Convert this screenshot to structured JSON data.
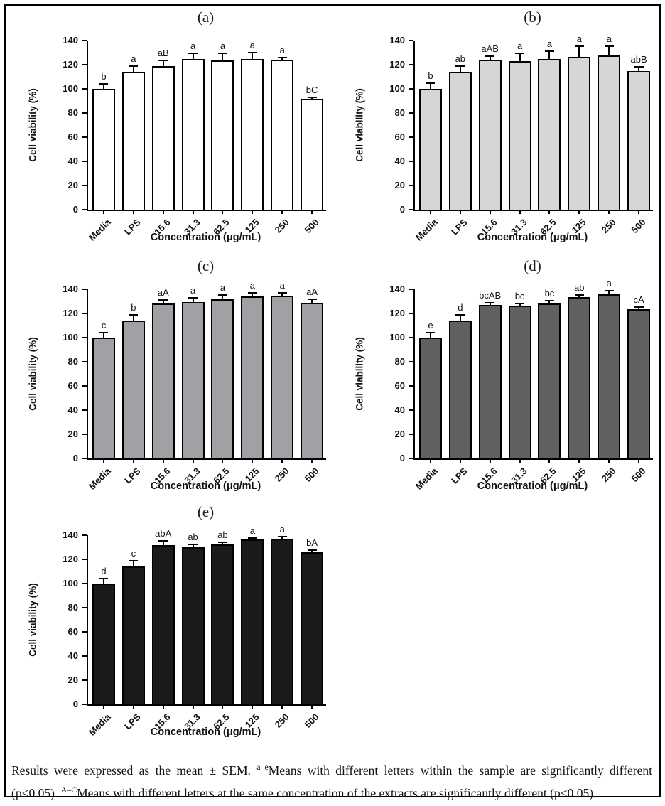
{
  "figure": {
    "caption": {
      "part1": "Results were expressed as the mean ± SEM. ",
      "sup1": "a–e",
      "part2": "Means with different letters within the sample are significantly different (p<0.05). ",
      "sup2": "A–C",
      "part3": "Means with different letters at the same concentration of the extracts are significantly different (p<0.05)."
    }
  },
  "chart_data": [
    {
      "type": "bar",
      "title": "(a)",
      "categories": [
        "Media",
        "LPS",
        "15.6",
        "31.3",
        "62.5",
        "125",
        "250",
        "500"
      ],
      "values": [
        100,
        114,
        119,
        124.5,
        123.5,
        125,
        124,
        91.5
      ],
      "errors": [
        3.5,
        4.5,
        4,
        4.5,
        5.5,
        4.5,
        1.5,
        1
      ],
      "letters": [
        "b",
        "a",
        "aB",
        "a",
        "a",
        "a",
        "a",
        "bC"
      ],
      "bar_fill": "#ffffff",
      "xlabel": "Concentration (μg/mL)",
      "ylabel": "Cell viability (%)",
      "ylim": [
        0,
        140
      ],
      "ytick_step": 20,
      "grid": false
    },
    {
      "type": "bar",
      "title": "(b)",
      "categories": [
        "Media",
        "LPS",
        "15.6",
        "31.3",
        "62.5",
        "125",
        "250",
        "500"
      ],
      "values": [
        100,
        114,
        124,
        123,
        124.5,
        126.5,
        127.5,
        115
      ],
      "errors": [
        4,
        4.5,
        2.5,
        6,
        6,
        8,
        7.5,
        2.5
      ],
      "letters": [
        "b",
        "ab",
        "aAB",
        "a",
        "a",
        "a",
        "a",
        "abB"
      ],
      "bar_fill": "#d6d6d6",
      "xlabel": "Concentration (μg/mL)",
      "ylabel": "Cell viability (%)",
      "ylim": [
        0,
        140
      ],
      "ytick_step": 20,
      "grid": false
    },
    {
      "type": "bar",
      "title": "(c)",
      "categories": [
        "Media",
        "LPS",
        "15.6",
        "31.3",
        "62.5",
        "125",
        "250",
        "500"
      ],
      "values": [
        100,
        114,
        128.5,
        129.5,
        132,
        134,
        135,
        129
      ],
      "errors": [
        3.5,
        4.5,
        2,
        3,
        2.5,
        2.5,
        1.5,
        2
      ],
      "letters": [
        "c",
        "b",
        "aA",
        "a",
        "a",
        "a",
        "a",
        "aA"
      ],
      "bar_fill": "#a0a1a5",
      "xlabel": "Concentration (μg/mL)",
      "ylabel": "Cell viability (%)",
      "ylim": [
        0,
        140
      ],
      "ytick_step": 20,
      "grid": false
    },
    {
      "type": "bar",
      "title": "(d)",
      "categories": [
        "Media",
        "LPS",
        "15.6",
        "31.3",
        "62.5",
        "125",
        "250",
        "500"
      ],
      "values": [
        100,
        114,
        127,
        126.5,
        128.5,
        133.5,
        136,
        123.5
      ],
      "errors": [
        3.5,
        4.5,
        1,
        1,
        1.5,
        1.5,
        2,
        1.5
      ],
      "letters": [
        "e",
        "d",
        "bcAB",
        "bc",
        "bc",
        "ab",
        "a",
        "cA"
      ],
      "bar_fill": "#606063",
      "xlabel": "Concentration (μg/mL)",
      "ylabel": "Cell viability (%)",
      "ylim": [
        0,
        140
      ],
      "ytick_step": 20,
      "grid": false
    },
    {
      "type": "bar",
      "title": "(e)",
      "categories": [
        "Media",
        "LPS",
        "15.6",
        "31.3",
        "62.5",
        "125",
        "250",
        "500"
      ],
      "values": [
        100,
        114,
        132,
        130,
        132.5,
        136.5,
        137,
        126
      ],
      "errors": [
        3.5,
        4.5,
        2.5,
        1.5,
        1,
        0.5,
        1,
        1
      ],
      "letters": [
        "d",
        "c",
        "abA",
        "ab",
        "ab",
        "a",
        "a",
        "bA"
      ],
      "bar_fill": "#1a1a1a",
      "xlabel": "Concentration (μg/mL)",
      "ylabel": "Cell viability (%)",
      "ylim": [
        0,
        140
      ],
      "ytick_step": 20,
      "grid": false
    }
  ]
}
